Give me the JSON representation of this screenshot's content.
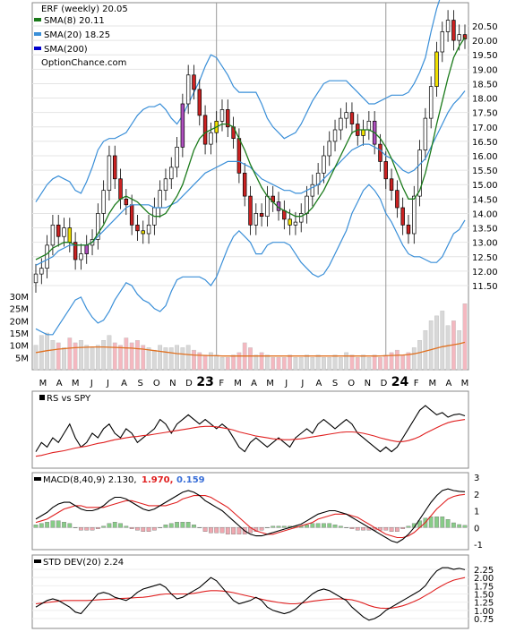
{
  "colors": {
    "sma8": "#1a7a1a",
    "sma20_band": "#3a8fd8",
    "sma200": "#0000cc",
    "up_candle": "#ffffff",
    "down_candle": "#cc2222",
    "yellow": "#f0e000",
    "magenta": "#b050c0",
    "volume_up": "#d8d8d8",
    "volume_down": "#f4b8c0",
    "volume_avg": "#e07020",
    "black_line": "#000000",
    "red_line": "#e02020",
    "macd_hist_pos": "#88cc88",
    "macd_hist_neg": "#f0a8b0"
  },
  "legend": {
    "title": "ERF (weekly) 20.05",
    "sma8": "SMA(8) 20.11",
    "sma20": "SMA(20) 18.25",
    "sma200": "SMA(200)",
    "source": "OptionChance.com"
  },
  "panels": {
    "rs_label": "RS vs SPY",
    "macd_label": "MACD(8,40,9) 2.130,",
    "macd_signal": "1.970,",
    "macd_hist": "0.159",
    "std_label": "STD DEV(20) 2.24"
  },
  "chart_data": [
    {
      "type": "candlestick",
      "title": "ERF (weekly)",
      "price_ticks": [
        "20.50",
        "20.00",
        "19.50",
        "19.00",
        "18.50",
        "18.00",
        "17.50",
        "17.00",
        "16.50",
        "16.00",
        "15.50",
        "15.00",
        "14.50",
        "14.00",
        "13.50",
        "13.00",
        "12.50",
        "12.00",
        "11.50"
      ],
      "volume_ticks": [
        "30M",
        "25M",
        "20M",
        "15M",
        "10M",
        "5M"
      ],
      "x_labels": [
        "M",
        "A",
        "M",
        "J",
        "J",
        "A",
        "S",
        "O",
        "N",
        "D",
        "23",
        "F",
        "M",
        "A",
        "M",
        "J",
        "J",
        "A",
        "S",
        "O",
        "N",
        "D",
        "24",
        "F",
        "M",
        "A",
        "M"
      ],
      "closes": [
        11.9,
        12.1,
        12.9,
        13.6,
        13.2,
        13.5,
        13.0,
        12.4,
        12.6,
        12.9,
        13.1,
        14.0,
        14.8,
        16.0,
        15.2,
        14.5,
        14.3,
        13.6,
        13.4,
        13.3,
        13.6,
        14.2,
        14.8,
        15.2,
        15.6,
        16.3,
        17.8,
        18.8,
        18.3,
        17.4,
        16.4,
        16.8,
        17.2,
        17.6,
        17.0,
        16.6,
        15.4,
        14.6,
        13.6,
        14.0,
        13.9,
        14.6,
        14.4,
        14.1,
        13.8,
        13.6,
        13.7,
        14.0,
        14.6,
        15.0,
        15.4,
        16.0,
        16.5,
        16.9,
        17.3,
        17.5,
        17.1,
        16.7,
        16.9,
        17.2,
        16.4,
        15.8,
        15.2,
        14.8,
        14.2,
        13.6,
        13.3,
        14.6,
        16.2,
        17.3,
        18.4,
        19.6,
        20.3,
        20.7,
        20.0,
        20.2,
        20.05
      ],
      "sma8": [
        12.4,
        12.5,
        12.6,
        12.8,
        12.9,
        13.0,
        13.0,
        12.9,
        12.9,
        12.9,
        13.0,
        13.3,
        13.6,
        14.0,
        14.3,
        14.5,
        14.6,
        14.5,
        14.4,
        14.2,
        14.0,
        13.9,
        13.9,
        14.0,
        14.3,
        14.6,
        15.0,
        15.6,
        16.2,
        16.6,
        16.8,
        16.9,
        17.0,
        17.1,
        17.1,
        17.0,
        16.6,
        16.2,
        15.7,
        15.3,
        14.9,
        14.6,
        14.4,
        14.2,
        14.1,
        14.0,
        13.9,
        13.9,
        14.0,
        14.2,
        14.5,
        14.8,
        15.2,
        15.6,
        16.0,
        16.4,
        16.8,
        16.9,
        16.9,
        16.9,
        16.8,
        16.6,
        16.3,
        15.9,
        15.4,
        14.9,
        14.5,
        14.5,
        14.8,
        15.4,
        16.2,
        17.1,
        17.9,
        18.7,
        19.4,
        19.8,
        20.11
      ],
      "sma20": [
        12.2,
        12.3,
        12.4,
        12.5,
        12.7,
        12.8,
        12.9,
        12.9,
        12.9,
        12.9,
        13.0,
        13.2,
        13.4,
        13.6,
        13.8,
        14.0,
        14.2,
        14.3,
        14.3,
        14.3,
        14.3,
        14.2,
        14.2,
        14.2,
        14.3,
        14.4,
        14.6,
        14.8,
        15.0,
        15.2,
        15.4,
        15.5,
        15.6,
        15.7,
        15.8,
        15.8,
        15.8,
        15.7,
        15.6,
        15.4,
        15.2,
        15.1,
        15.0,
        14.9,
        14.8,
        14.8,
        14.7,
        14.7,
        14.8,
        14.9,
        15.0,
        15.2,
        15.4,
        15.6,
        15.8,
        16.0,
        16.2,
        16.3,
        16.4,
        16.4,
        16.3,
        16.2,
        16.0,
        15.9,
        15.7,
        15.5,
        15.4,
        15.5,
        15.7,
        15.9,
        16.3,
        16.7,
        17.1,
        17.5,
        17.8,
        18.0,
        18.25
      ],
      "volume_millions": [
        10,
        14,
        15,
        12,
        11,
        9,
        13,
        11,
        12,
        10,
        9,
        10,
        12,
        14,
        11,
        10,
        13,
        11,
        12,
        10,
        9,
        8,
        10,
        9,
        9,
        10,
        9,
        10,
        8,
        7,
        6,
        7,
        6,
        5,
        5,
        6,
        7,
        11,
        9,
        6,
        7,
        6,
        5,
        5,
        5,
        6,
        5,
        5,
        6,
        5,
        6,
        5,
        5,
        6,
        5,
        7,
        6,
        5,
        6,
        5,
        6,
        5,
        6,
        7,
        8,
        6,
        7,
        9,
        12,
        16,
        20,
        22,
        24,
        18,
        20,
        16,
        27
      ],
      "volume_avg_millions": [
        7,
        7.4,
        7.8,
        8.1,
        8.4,
        8.6,
        8.8,
        9.0,
        9.1,
        9.2,
        9.3,
        9.3,
        9.3,
        9.2,
        9.1,
        9.0,
        8.9,
        8.8,
        8.6,
        8.4,
        8.1,
        7.8,
        7.5,
        7.2,
        6.9,
        6.6,
        6.4,
        6.2,
        6.0,
        5.9,
        5.8,
        5.7,
        5.7,
        5.6,
        5.6,
        5.6,
        5.6,
        5.6,
        5.6,
        5.6,
        5.6,
        5.6,
        5.6,
        5.6,
        5.6,
        5.6,
        5.6,
        5.6,
        5.6,
        5.6,
        5.6,
        5.6,
        5.6,
        5.6,
        5.6,
        5.6,
        5.6,
        5.6,
        5.6,
        5.6,
        5.6,
        5.6,
        5.7,
        5.8,
        5.9,
        6.0,
        6.2,
        6.5,
        7.0,
        7.6,
        8.2,
        8.8,
        9.4,
        9.8,
        10.2,
        10.6,
        11.2
      ]
    },
    {
      "type": "line",
      "title": "RS vs SPY",
      "rs": [
        0.2,
        0.4,
        0.3,
        0.5,
        0.4,
        0.6,
        0.8,
        0.5,
        0.3,
        0.4,
        0.6,
        0.5,
        0.7,
        0.8,
        0.6,
        0.5,
        0.7,
        0.6,
        0.4,
        0.5,
        0.6,
        0.7,
        0.9,
        0.8,
        0.6,
        0.8,
        0.9,
        1.0,
        0.9,
        0.8,
        0.9,
        0.8,
        0.7,
        0.8,
        0.7,
        0.5,
        0.3,
        0.2,
        0.4,
        0.5,
        0.4,
        0.3,
        0.4,
        0.5,
        0.4,
        0.3,
        0.5,
        0.6,
        0.7,
        0.6,
        0.8,
        0.9,
        0.8,
        0.7,
        0.8,
        0.9,
        0.8,
        0.6,
        0.5,
        0.4,
        0.3,
        0.2,
        0.3,
        0.2,
        0.3,
        0.5,
        0.7,
        0.9,
        1.1,
        1.2,
        1.1,
        1.0,
        1.05,
        0.95,
        1.0,
        1.02,
        0.98
      ],
      "rs_ma": [
        0.1,
        0.12,
        0.15,
        0.18,
        0.2,
        0.22,
        0.25,
        0.28,
        0.3,
        0.32,
        0.35,
        0.38,
        0.4,
        0.43,
        0.46,
        0.48,
        0.5,
        0.52,
        0.53,
        0.55,
        0.56,
        0.58,
        0.6,
        0.62,
        0.64,
        0.66,
        0.68,
        0.7,
        0.72,
        0.74,
        0.75,
        0.75,
        0.74,
        0.72,
        0.7,
        0.67,
        0.63,
        0.6,
        0.57,
        0.54,
        0.52,
        0.5,
        0.48,
        0.47,
        0.46,
        0.46,
        0.47,
        0.48,
        0.5,
        0.52,
        0.54,
        0.56,
        0.58,
        0.6,
        0.62,
        0.63,
        0.63,
        0.62,
        0.6,
        0.57,
        0.54,
        0.5,
        0.47,
        0.44,
        0.42,
        0.42,
        0.44,
        0.48,
        0.53,
        0.6,
        0.66,
        0.72,
        0.78,
        0.83,
        0.86,
        0.88,
        0.9
      ]
    },
    {
      "type": "line",
      "title": "MACD(8,40,9)",
      "y_ticks": [
        "3",
        "2",
        "1",
        "0",
        "-1"
      ],
      "macd": [
        0.5,
        0.7,
        0.9,
        1.2,
        1.4,
        1.5,
        1.5,
        1.3,
        1.1,
        1.0,
        1.0,
        1.1,
        1.3,
        1.6,
        1.8,
        1.8,
        1.7,
        1.5,
        1.3,
        1.1,
        1.0,
        1.1,
        1.3,
        1.5,
        1.7,
        1.9,
        2.1,
        2.2,
        2.1,
        1.9,
        1.6,
        1.4,
        1.2,
        1.0,
        0.7,
        0.4,
        0.1,
        -0.2,
        -0.4,
        -0.5,
        -0.5,
        -0.4,
        -0.3,
        -0.2,
        -0.1,
        0.0,
        0.1,
        0.2,
        0.4,
        0.6,
        0.8,
        0.9,
        1.0,
        1.0,
        0.9,
        0.8,
        0.6,
        0.4,
        0.2,
        0.0,
        -0.2,
        -0.4,
        -0.6,
        -0.8,
        -0.9,
        -0.7,
        -0.4,
        0.0,
        0.5,
        1.0,
        1.5,
        1.9,
        2.2,
        2.3,
        2.2,
        2.15,
        2.13
      ],
      "signal": [
        0.3,
        0.4,
        0.5,
        0.7,
        0.9,
        1.1,
        1.2,
        1.3,
        1.3,
        1.2,
        1.2,
        1.2,
        1.2,
        1.3,
        1.4,
        1.5,
        1.6,
        1.6,
        1.5,
        1.4,
        1.3,
        1.3,
        1.3,
        1.3,
        1.4,
        1.5,
        1.7,
        1.8,
        1.9,
        1.9,
        1.9,
        1.8,
        1.6,
        1.4,
        1.2,
        0.9,
        0.6,
        0.3,
        0.0,
        -0.2,
        -0.3,
        -0.4,
        -0.4,
        -0.3,
        -0.2,
        -0.1,
        0.0,
        0.1,
        0.2,
        0.3,
        0.5,
        0.6,
        0.7,
        0.8,
        0.8,
        0.8,
        0.7,
        0.6,
        0.4,
        0.2,
        0.0,
        -0.2,
        -0.4,
        -0.5,
        -0.6,
        -0.6,
        -0.5,
        -0.3,
        0.0,
        0.3,
        0.7,
        1.1,
        1.4,
        1.7,
        1.85,
        1.93,
        1.97
      ],
      "macd_value": 2.13,
      "signal_value": 1.97,
      "histogram_value": 0.159
    },
    {
      "type": "line",
      "title": "STD DEV(20)",
      "y_ticks": [
        "2.25",
        "2.00",
        "1.75",
        "1.50",
        "1.25",
        "1.00",
        "0.75"
      ],
      "std": [
        1.1,
        1.2,
        1.3,
        1.35,
        1.3,
        1.2,
        1.1,
        0.95,
        0.9,
        1.1,
        1.3,
        1.5,
        1.55,
        1.5,
        1.4,
        1.35,
        1.3,
        1.4,
        1.55,
        1.65,
        1.7,
        1.75,
        1.8,
        1.7,
        1.5,
        1.35,
        1.4,
        1.5,
        1.6,
        1.7,
        1.85,
        2.0,
        1.9,
        1.7,
        1.5,
        1.3,
        1.2,
        1.25,
        1.3,
        1.4,
        1.3,
        1.1,
        1.0,
        0.95,
        0.9,
        0.95,
        1.05,
        1.2,
        1.35,
        1.5,
        1.6,
        1.65,
        1.6,
        1.5,
        1.4,
        1.3,
        1.1,
        0.95,
        0.8,
        0.7,
        0.75,
        0.85,
        1.0,
        1.1,
        1.2,
        1.3,
        1.4,
        1.5,
        1.6,
        1.75,
        2.0,
        2.2,
        2.3,
        2.3,
        2.25,
        2.28,
        2.24
      ],
      "std_ma": [
        1.2,
        1.22,
        1.24,
        1.26,
        1.28,
        1.3,
        1.3,
        1.3,
        1.3,
        1.3,
        1.31,
        1.32,
        1.33,
        1.34,
        1.35,
        1.36,
        1.37,
        1.38,
        1.39,
        1.4,
        1.42,
        1.45,
        1.48,
        1.5,
        1.5,
        1.5,
        1.5,
        1.5,
        1.52,
        1.55,
        1.58,
        1.6,
        1.6,
        1.59,
        1.57,
        1.54,
        1.5,
        1.46,
        1.42,
        1.38,
        1.34,
        1.3,
        1.27,
        1.24,
        1.22,
        1.2,
        1.2,
        1.22,
        1.25,
        1.28,
        1.3,
        1.32,
        1.34,
        1.35,
        1.35,
        1.34,
        1.32,
        1.28,
        1.22,
        1.15,
        1.1,
        1.07,
        1.06,
        1.07,
        1.1,
        1.14,
        1.2,
        1.27,
        1.35,
        1.45,
        1.55,
        1.66,
        1.76,
        1.85,
        1.92,
        1.96,
        2.0
      ]
    }
  ]
}
